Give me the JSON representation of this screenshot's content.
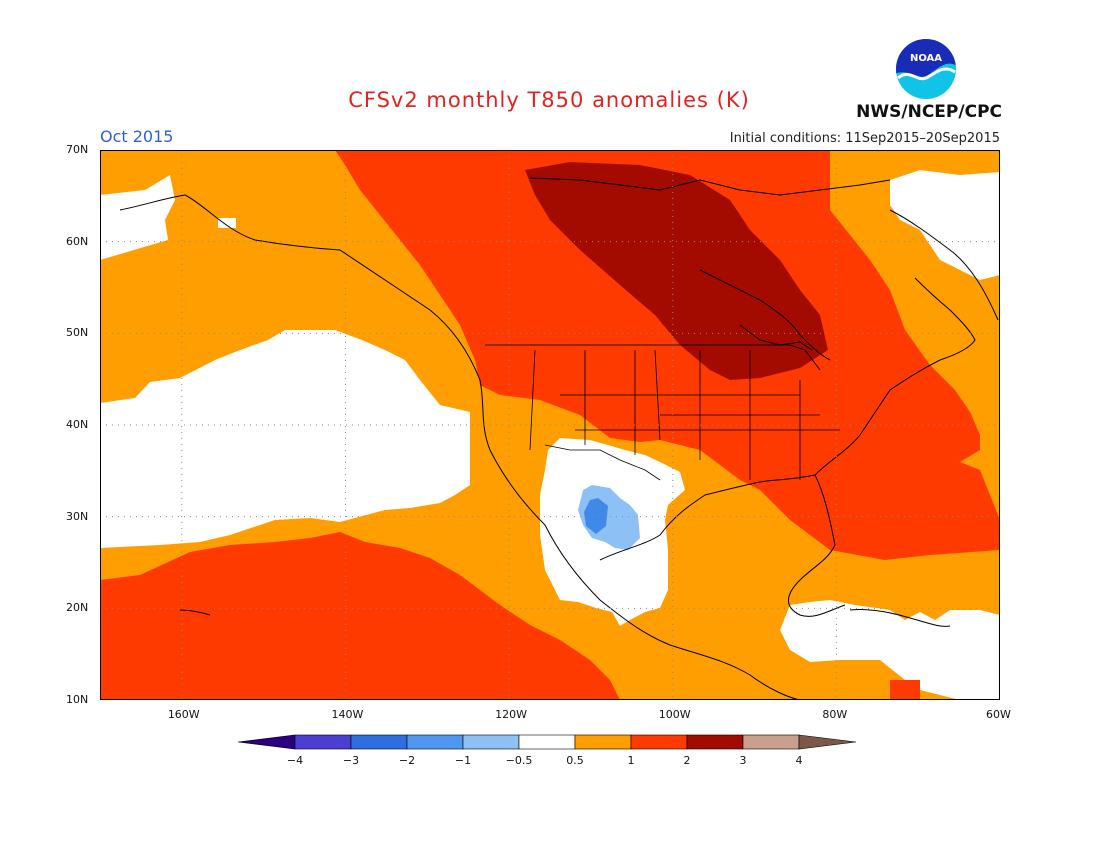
{
  "header": {
    "title": "CFSv2 monthly T850 anomalies (K)",
    "month": "Oct 2015",
    "initial_conditions": "Initial conditions: 11Sep2015–20Sep2015",
    "agency": "NWS/NCEP/CPC",
    "logo_text": "NOAA"
  },
  "colors": {
    "title": "#e52121",
    "month": "#2e5fd6",
    "ocean_white": "#ffffff",
    "anom_0_5_1": "#ff9e00",
    "anom_1_2": "#ff3a00",
    "anom_2_3": "#a40b00",
    "anom_neg_0_5_1": "#82b6f5",
    "anom_neg_1_2": "#3a8ae8",
    "grid": "#8a8a8a"
  },
  "map": {
    "lon_range": [
      -170,
      -60
    ],
    "lat_range": [
      10,
      70
    ],
    "lat_ticks": [
      {
        "value": 70,
        "label": "70N"
      },
      {
        "value": 60,
        "label": "60N"
      },
      {
        "value": 50,
        "label": "50N"
      },
      {
        "value": 40,
        "label": "40N"
      },
      {
        "value": 30,
        "label": "30N"
      },
      {
        "value": 20,
        "label": "20N"
      },
      {
        "value": 10,
        "label": "10N"
      }
    ],
    "lon_ticks": [
      {
        "value": -160,
        "label": "160W"
      },
      {
        "value": -140,
        "label": "140W"
      },
      {
        "value": -120,
        "label": "120W"
      },
      {
        "value": -100,
        "label": "100W"
      },
      {
        "value": -80,
        "label": "80W"
      },
      {
        "value": -60,
        "label": "60W"
      }
    ]
  },
  "colorbar": {
    "colors": [
      "#2a0080",
      "#4a3fd0",
      "#2d6fe0",
      "#4f97f0",
      "#8dc0f5",
      "#ffffff",
      "#ff9e00",
      "#ff3a00",
      "#a40b00",
      "#c9a08e",
      "#7d5848"
    ],
    "labels": [
      "−4",
      "−3",
      "−2",
      "−1",
      "−0.5",
      "0.5",
      "1",
      "2",
      "3",
      "4"
    ]
  }
}
